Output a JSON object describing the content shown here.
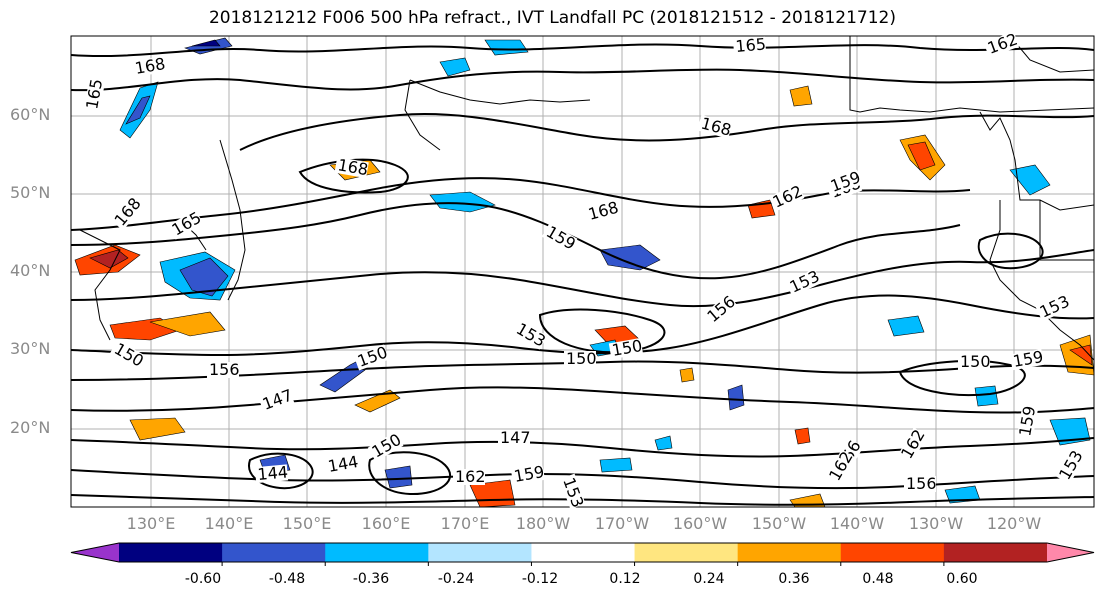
{
  "title": "2018121212 F006 500 hPa refract., IVT Landfall PC (2018121512 - 2018121712)",
  "lat_labels": [
    "60°N",
    "50°N",
    "40°N",
    "30°N",
    "20°N"
  ],
  "lon_labels": [
    "130°E",
    "140°E",
    "150°E",
    "160°E",
    "170°E",
    "180°W",
    "170°W",
    "160°W",
    "150°W",
    "140°W",
    "130°W",
    "120°W"
  ],
  "contour_labels": [
    "168",
    "165",
    "168",
    "165",
    "168",
    "162",
    "168",
    "165",
    "168",
    "159",
    "168",
    "162",
    "159",
    "153",
    "156",
    "153",
    "153",
    "150",
    "150",
    "150",
    "150",
    "159",
    "150",
    "147",
    "156",
    "144",
    "144",
    "150",
    "147",
    "162",
    "159",
    "153",
    "156",
    "162",
    "162",
    "159",
    "156",
    "153"
  ],
  "colorbar": {
    "ticks": [
      "-0.60",
      "-0.48",
      "-0.36",
      "-0.24",
      "-0.12",
      "0.12",
      "0.24",
      "0.36",
      "0.48",
      "0.60"
    ],
    "colors": [
      "#9933cc",
      "#000080",
      "#3355cc",
      "#00bbff",
      "#b3e5ff",
      "#ffffff",
      "#ffe680",
      "#ffa500",
      "#ff4500",
      "#b22222",
      "#ff88aa"
    ]
  }
}
